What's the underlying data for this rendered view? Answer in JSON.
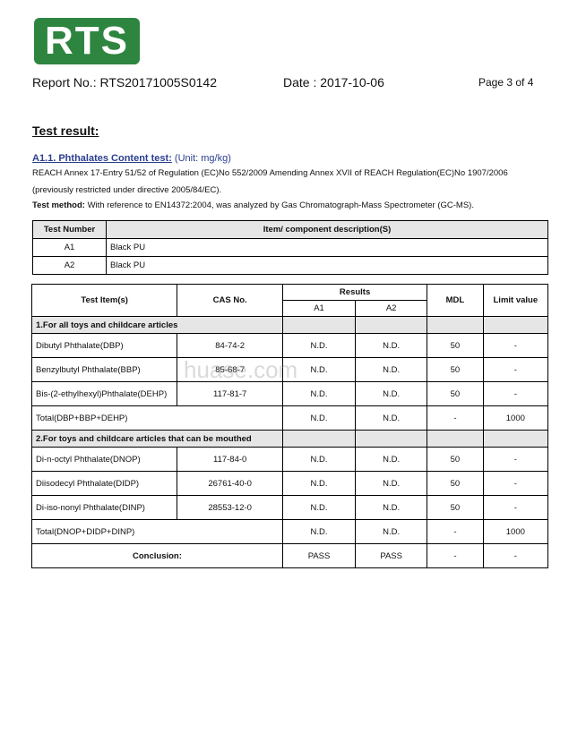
{
  "logo": "RTS",
  "header": {
    "report_no": "Report No.: RTS20171005S0142",
    "date": "Date : 2017-10-06",
    "page": "Page 3 of 4"
  },
  "title": "Test result:",
  "section": {
    "heading": "A1.1. Phthalates Content test:",
    "unit": "(Unit: mg/kg)",
    "line1": "REACH Annex 17-Entry 51/52 of Regulation (EC)No 552/2009 Amending Annex XVII of REACH Regulation(EC)No 1907/2006",
    "line2": "(previously restricted under directive 2005/84/EC).",
    "method_label": "Test method:",
    "method_text": " With reference to EN14372:2004, was analyzed by Gas Chromatograph-Mass Spectrometer (GC-MS)."
  },
  "samples": {
    "headers": [
      "Test Number",
      "Item/ component description(S)"
    ],
    "rows": [
      [
        "A1",
        "Black PU"
      ],
      [
        "A2",
        "Black PU"
      ]
    ]
  },
  "results": {
    "headers": {
      "item": "Test Item(s)",
      "cas": "CAS No.",
      "results": "Results",
      "a1": "A1",
      "a2": "A2",
      "mdl": "MDL",
      "limit": "Limit value"
    },
    "section1": "1.For all toys and childcare articles",
    "rows1": [
      [
        "Dibutyl Phthalate(DBP)",
        "84-74-2",
        "N.D.",
        "N.D.",
        "50",
        "-"
      ],
      [
        "Benzylbutyl Phthalate(BBP)",
        "85-68-7",
        "N.D.",
        "N.D.",
        "50",
        "-"
      ],
      [
        "Bis-(2-ethylhexyl)Phthalate(DEHP)",
        "117-81-7",
        "N.D.",
        "N.D.",
        "50",
        "-"
      ]
    ],
    "total1": [
      "Total(DBP+BBP+DEHP)",
      "N.D.",
      "N.D.",
      "-",
      "1000"
    ],
    "section2": "2.For toys and childcare articles that can be mouthed",
    "rows2": [
      [
        "Di-n-octyl Phthalate(DNOP)",
        "117-84-0",
        "N.D.",
        "N.D.",
        "50",
        "-"
      ],
      [
        "Diisodecyl Phthalate(DIDP)",
        "26761-40-0",
        "N.D.",
        "N.D.",
        "50",
        "-"
      ],
      [
        "Di-iso-nonyl Phthalate(DINP)",
        "28553-12-0",
        "N.D.",
        "N.D.",
        "50",
        "-"
      ]
    ],
    "total2": [
      "Total(DNOP+DIDP+DINP)",
      "N.D.",
      "N.D.",
      "-",
      "1000"
    ],
    "conclusion": [
      "Conclusion:",
      "PASS",
      "PASS",
      "-",
      "-"
    ]
  },
  "watermark": "huase.com"
}
